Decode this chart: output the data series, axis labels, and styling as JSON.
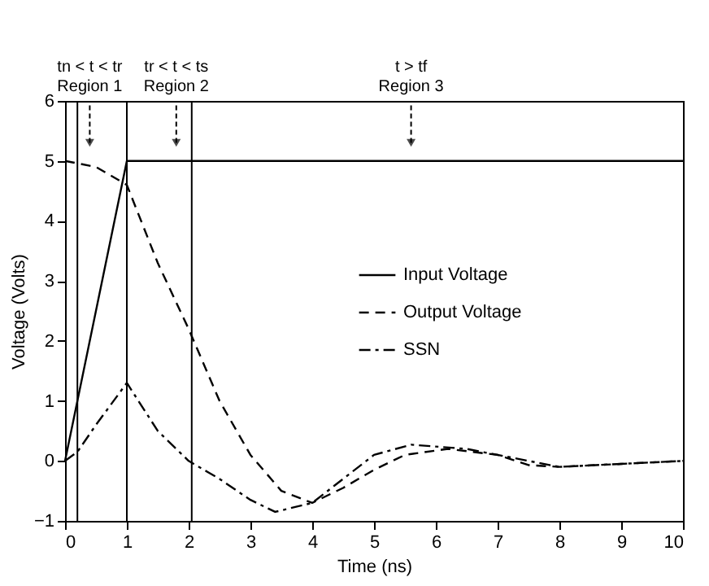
{
  "chart_data": {
    "type": "line",
    "xlabel": "Time (ns)",
    "ylabel": "Voltage (Volts)",
    "xlim": [
      0,
      10
    ],
    "ylim": [
      -1,
      6
    ],
    "xticks": [
      0,
      1,
      2,
      3,
      4,
      5,
      6,
      7,
      8,
      9,
      10
    ],
    "yticks": [
      -1,
      0,
      1,
      2,
      3,
      4,
      5,
      6
    ],
    "grid": false,
    "legend": "right",
    "series": [
      {
        "name": "Input Voltage",
        "color": "#000000",
        "line_style": "solid",
        "x": [
          0,
          1,
          10
        ],
        "values": [
          0,
          5,
          5
        ]
      },
      {
        "name": "Output Voltage",
        "color": "#000000",
        "line_style": "dashed",
        "x": [
          0,
          0.5,
          1,
          1.5,
          2,
          2.5,
          3,
          3.5,
          4,
          4.5,
          5,
          5.5,
          6.2,
          7,
          7.5,
          8,
          9,
          10
        ],
        "values": [
          5,
          4.9,
          4.6,
          3.3,
          2.2,
          1.0,
          0.1,
          -0.5,
          -0.7,
          -0.45,
          -0.15,
          0.1,
          0.2,
          0.1,
          -0.07,
          -0.1,
          -0.05,
          0
        ]
      },
      {
        "name": "SSN",
        "color": "#000000",
        "line_style": "dashdot",
        "x": [
          0,
          0.2,
          0.5,
          1,
          1.5,
          2,
          2.5,
          3,
          3.4,
          4,
          4.5,
          5,
          5.6,
          6.5,
          7.5,
          8,
          9,
          10
        ],
        "values": [
          0,
          0.15,
          0.6,
          1.3,
          0.5,
          0.0,
          -0.3,
          -0.65,
          -0.85,
          -0.7,
          -0.3,
          0.1,
          0.27,
          0.2,
          0.0,
          -0.1,
          -0.05,
          0
        ]
      }
    ],
    "ref_lines": [
      {
        "axis": "x",
        "value": 0.2,
        "color": "#000000"
      },
      {
        "axis": "x",
        "value": 1,
        "color": "#000000"
      },
      {
        "axis": "x",
        "value": 2.05,
        "color": "#000000"
      }
    ],
    "annotations": [
      {
        "text": "tn < t < tr\nRegion 1",
        "x": 0.4,
        "y": 5.3
      },
      {
        "text": "tr < t < ts\nRegion 2",
        "x": 1.8,
        "y": 5.3
      },
      {
        "text": "t > tf\nRegion 3",
        "x": 5.6,
        "y": 5.3
      }
    ]
  }
}
